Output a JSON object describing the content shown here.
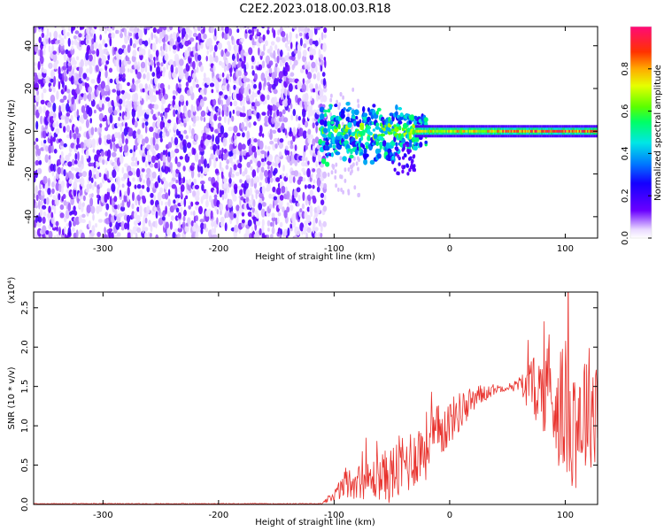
{
  "chart_data": [
    {
      "type": "heatmap",
      "title": "C2E2.2023.018.00.03.R18",
      "xlabel": "Height of straight line (km)",
      "ylabel": "Frequency (Hz)",
      "xlim": [
        -360,
        128
      ],
      "ylim": [
        -50,
        49
      ],
      "x_ticks": [
        "-300",
        "-200",
        "-100",
        "0",
        "100"
      ],
      "y_ticks": [
        "-40",
        "-20",
        "0",
        "20",
        "40"
      ],
      "x_tick_values": [
        -300,
        -200,
        -100,
        0,
        100
      ],
      "y_tick_values": [
        -40,
        -20,
        0,
        20,
        40
      ],
      "colorbar": {
        "label": "Normalized spectral amplitude",
        "range": [
          0,
          1
        ],
        "ticks": [
          "0.0",
          "0.2",
          "0.4",
          "0.6",
          "0.8"
        ],
        "tick_values": [
          0,
          0.2,
          0.4,
          0.6,
          0.8
        ],
        "colormap": "rainbow"
      },
      "grid": false
    },
    {
      "type": "line",
      "xlabel": "Height of straight line (km)",
      "ylabel": "SNR (10 * v/v)",
      "y_multiplier": "(x10⁴)",
      "xlim": [
        -360,
        128
      ],
      "ylim": [
        0,
        2.7
      ],
      "x_ticks": [
        "-300",
        "-200",
        "-100",
        "0",
        "100"
      ],
      "y_ticks": [
        "0.0",
        "0.5",
        "1.0",
        "1.5",
        "2.0",
        "2.5"
      ],
      "x_tick_values": [
        -300,
        -200,
        -100,
        0,
        100
      ],
      "y_tick_values": [
        0,
        0.5,
        1.0,
        1.5,
        2.0,
        2.5
      ],
      "line_color": "#e8322d",
      "series": [
        {
          "x": [
            -360,
            -300,
            -200,
            -150,
            -110,
            -100,
            -90,
            -80,
            -70,
            -60,
            -50,
            -40,
            -30,
            -20,
            -10,
            0,
            10,
            20,
            30,
            40,
            50,
            60,
            70,
            80,
            90,
            100,
            110,
            120,
            128
          ],
          "y": [
            0.0,
            0.0,
            0.0,
            0.0,
            0.01,
            0.12,
            0.25,
            0.3,
            0.3,
            0.35,
            0.38,
            0.5,
            0.62,
            0.75,
            0.9,
            1.05,
            1.2,
            1.32,
            1.42,
            1.47,
            1.49,
            1.52,
            1.5,
            1.45,
            1.35,
            1.2,
            1.1,
            1.25,
            1.3
          ],
          "fluctuation": [
            0,
            0,
            0,
            0,
            0.01,
            0.08,
            0.2,
            0.22,
            0.25,
            0.3,
            0.38,
            0.45,
            0.4,
            0.45,
            0.38,
            0.3,
            0.25,
            0.2,
            0.12,
            0.06,
            0.04,
            0.1,
            0.35,
            0.5,
            0.75,
            0.9,
            0.95,
            0.8,
            0.8
          ]
        }
      ],
      "grid": false
    }
  ]
}
